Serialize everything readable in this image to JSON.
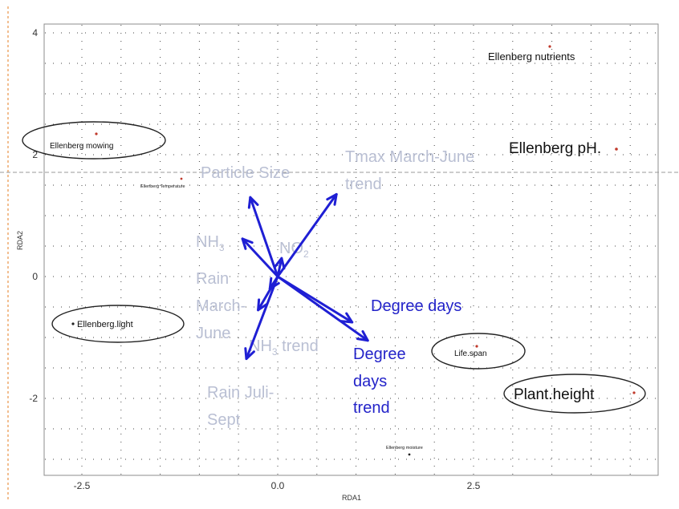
{
  "chart_data": {
    "type": "scatter",
    "xlabel": "RDA1",
    "ylabel": "RDA2",
    "xlim": [
      -3.0,
      4.9
    ],
    "ylim": [
      -3.3,
      4.1
    ],
    "xticks": [
      -2.5,
      0.0,
      2.5
    ],
    "xtick_labels": [
      "-2.5",
      "0.0",
      "2.5"
    ],
    "yticks": [
      -2,
      0,
      2,
      4
    ],
    "ytick_labels": [
      "-2",
      "0",
      "2",
      "4"
    ],
    "grid": "dotted",
    "points": [
      {
        "label": "Ellenberg nutrients",
        "x": 3.5,
        "y": 3.7,
        "circled": false
      },
      {
        "label": "Ellenberg mowing",
        "x": -2.35,
        "y": 2.25,
        "circled": true
      },
      {
        "label": "Ellenberg pH",
        "x": 4.1,
        "y": 2.0,
        "circled": false
      },
      {
        "label": "Ellenberg Temperature",
        "x": -1.25,
        "y": 1.5,
        "circled": false
      },
      {
        "label": "Ellenberg.light",
        "x": -2.6,
        "y": -0.85,
        "circled": true
      },
      {
        "label": "Life.span",
        "x": 2.55,
        "y": -1.4,
        "circled": true
      },
      {
        "label": "Plant.height",
        "x": 4.5,
        "y": -2.0,
        "circled": true
      },
      {
        "label": "Ellenberg moisture",
        "x": 1.7,
        "y": -3.0,
        "circled": false
      }
    ],
    "arrows": [
      {
        "label": "Particle Size",
        "x": -0.35,
        "y": 1.3,
        "faded": true
      },
      {
        "label": "Tmax March-June trend",
        "x": 0.75,
        "y": 1.35,
        "faded": true
      },
      {
        "label": "NH3",
        "x": -0.45,
        "y": 0.62,
        "faded": true
      },
      {
        "label": "NO2",
        "x": 0.05,
        "y": 0.3,
        "faded": true
      },
      {
        "label": "Rain March-June",
        "x": -0.25,
        "y": -0.55,
        "faded": true
      },
      {
        "label": "NH3 trend",
        "x": -0.4,
        "y": -1.35,
        "faded": true
      },
      {
        "label": "Degree days",
        "x": 0.95,
        "y": -0.75,
        "faded": false
      },
      {
        "label": "Degree days trend",
        "x": 1.15,
        "y": -1.05,
        "faded": false
      },
      {
        "label": "Rain Juli-Sept",
        "x": -0.1,
        "y": -0.2,
        "faded": true
      }
    ]
  },
  "labels": {
    "particle": "Particle Size",
    "tmax_1": "Tmax March-June",
    "tmax_2": "trend",
    "nh3": "NH",
    "nh3_sub": "3",
    "no2": "NO",
    "no2_sub": "2",
    "rain1_1": "Rain",
    "rain1_2": "March-",
    "rain1_3": "June",
    "nh3trend_a": "NH",
    "nh3trend_sub": "3",
    "nh3trend_b": " trend",
    "rain2_1": "Rain Juli-",
    "rain2_2": "Sept",
    "dd": "Degree days",
    "ddt_1": "Degree",
    "ddt_2": "days",
    "ddt_3": "trend"
  },
  "colors": {
    "arrow": "#1f1fd4",
    "faded_text": "#b9bfd3",
    "point": "#c0392b",
    "frame": "#8c8c8c",
    "grid": "#444444"
  }
}
